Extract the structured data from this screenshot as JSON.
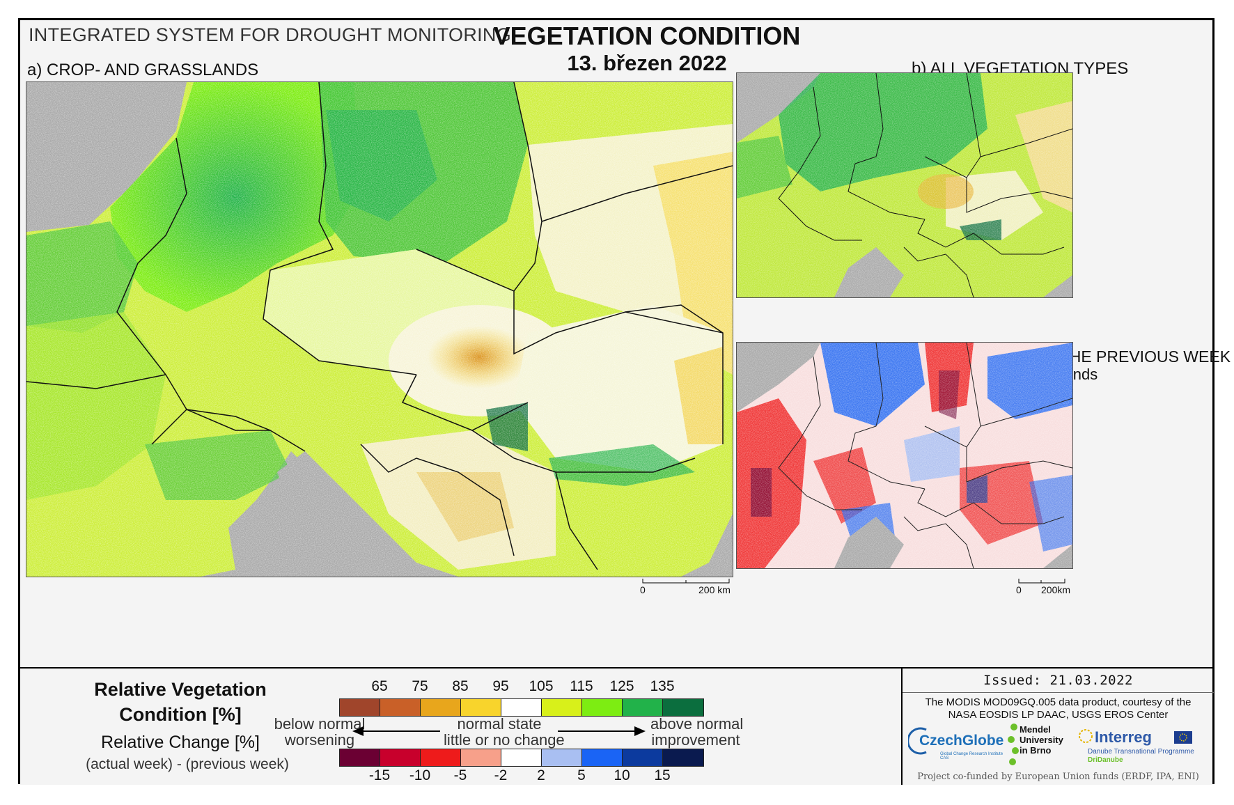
{
  "header": {
    "system": "INTEGRATED SYSTEM FOR DROUGHT MONITORING",
    "title": "VEGETATION CONDITION",
    "date": "13. březen 2022"
  },
  "panels": {
    "a_label": "a) CROP- AND GRASSLANDS",
    "b_label": "b) ALL VEGETATION TYPES",
    "c_label": "c) CHANGE COMPARED WITH THE PREVIOUS WEEK",
    "c_sub": "for crop- and grasslands"
  },
  "scalebars": {
    "main": {
      "zero": "0",
      "dist": "200 km"
    },
    "small": {
      "zero": "0",
      "dist": "200km"
    }
  },
  "legend": {
    "rvc_title": "Relative Vegetation Condition [%]",
    "rc_title": "Relative Change [%]",
    "rc_sub": "(actual week) - (previous week)",
    "rvc_ticks": [
      "65",
      "75",
      "85",
      "95",
      "105",
      "115",
      "125",
      "135"
    ],
    "rvc_colors": [
      "#a0452b",
      "#c96028",
      "#e8a61c",
      "#f8d42c",
      "#ffffff",
      "#d8f01a",
      "#7ded12",
      "#22b24a",
      "#0b6e3e"
    ],
    "rc_ticks": [
      "-15",
      "-10",
      "-5",
      "-2",
      "2",
      "5",
      "10",
      "15"
    ],
    "rc_colors": [
      "#6b0033",
      "#c8002c",
      "#ee1b1b",
      "#f7a08a",
      "#ffffff",
      "#a9bff2",
      "#1a64f5",
      "#0c3a9e",
      "#0a1a4f"
    ],
    "below": "below normal",
    "worsening": "worsening",
    "normal": "normal state",
    "little": "little or no change",
    "above": "above normal",
    "improvement": "improvement"
  },
  "info": {
    "issued": "Issued: 21.03.2022",
    "credit": "The MODIS MOD09GQ.005 data product, courtesy of the NASA EOSDIS LP DAAC, USGS EROS Center",
    "logo_czechglobe": "CzechGlobe",
    "logo_czechglobe_sub": "Global Change Research Institute CAS",
    "logo_mendel": "Mendel University in Brno",
    "logo_interreg": "Interreg",
    "logo_interreg_sub1": "Danube Transnational Programme",
    "logo_interreg_sub2": "DriDanube",
    "cofund": "Project co-funded by European Union funds (ERDF, IPA, ENI)"
  }
}
